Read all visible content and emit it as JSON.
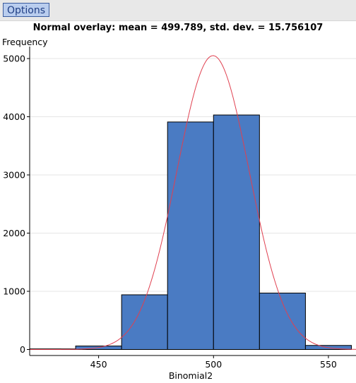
{
  "toolbar": {
    "options_label": "Options"
  },
  "colors": {
    "bar_fill": "#4a7bc3",
    "bar_stroke": "#000000",
    "curve": "#e04050",
    "grid": "#e6e6e6"
  },
  "chart_data": {
    "type": "bar",
    "title": "Normal overlay: mean = 499.789, std. dev. = 15.756107",
    "xlabel": "Binomial2",
    "ylabel": "Frequency",
    "xlim": [
      420,
      562
    ],
    "ylim": [
      0,
      5000
    ],
    "x_ticks": [
      450,
      500,
      550
    ],
    "y_ticks": [
      0,
      1000,
      2000,
      3000,
      4000,
      5000
    ],
    "grid": true,
    "bins": [
      {
        "start": 420,
        "end": 440,
        "value": 10
      },
      {
        "start": 440,
        "end": 460,
        "value": 60
      },
      {
        "start": 460,
        "end": 480,
        "value": 940
      },
      {
        "start": 480,
        "end": 500,
        "value": 3910
      },
      {
        "start": 500,
        "end": 520,
        "value": 4030
      },
      {
        "start": 520,
        "end": 540,
        "value": 970
      },
      {
        "start": 540,
        "end": 560,
        "value": 70
      }
    ],
    "overlay": {
      "type": "normal",
      "mean": 499.789,
      "std_dev": 15.756107,
      "peak": 5050
    }
  }
}
